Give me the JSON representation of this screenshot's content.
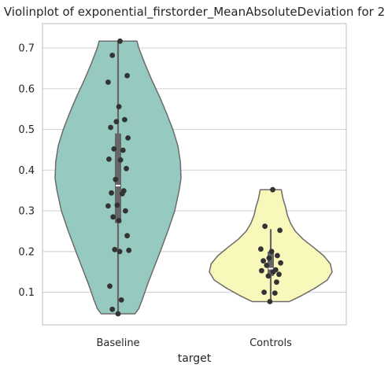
{
  "chart_data": {
    "type": "violin",
    "title": "Violinplot of exponential_firstorder_MeanAbsoluteDeviation for 2",
    "xlabel": "target",
    "ylabel": "",
    "categories": [
      "Baseline",
      "Controls"
    ],
    "ylim": [
      0.02,
      0.76
    ],
    "yticks": [
      0.1,
      0.2,
      0.3,
      0.4,
      0.5,
      0.6,
      0.7
    ],
    "ytick_labels": [
      "0.1",
      "0.2",
      "0.3",
      "0.4",
      "0.5",
      "0.6",
      "0.7"
    ],
    "grid": true,
    "colors": {
      "Baseline": "#96cac0",
      "Controls": "#f9f8bb",
      "outline": "#6b6b6b",
      "points": "#333333",
      "box": "#666666"
    },
    "series": [
      {
        "name": "Baseline",
        "min": 0.047,
        "max": 0.717,
        "q1": 0.27,
        "median": 0.362,
        "q3": 0.49,
        "whisker_low": 0.047,
        "whisker_high": 0.717,
        "density_profile": [
          [
            0.047,
            0.27
          ],
          [
            0.06,
            0.33
          ],
          [
            0.08,
            0.38
          ],
          [
            0.12,
            0.47
          ],
          [
            0.16,
            0.57
          ],
          [
            0.2,
            0.67
          ],
          [
            0.25,
            0.79
          ],
          [
            0.3,
            0.9
          ],
          [
            0.35,
            0.97
          ],
          [
            0.38,
            1.0
          ],
          [
            0.42,
            0.99
          ],
          [
            0.46,
            0.95
          ],
          [
            0.5,
            0.87
          ],
          [
            0.54,
            0.77
          ],
          [
            0.58,
            0.66
          ],
          [
            0.62,
            0.54
          ],
          [
            0.66,
            0.43
          ],
          [
            0.7,
            0.33
          ],
          [
            0.717,
            0.3
          ]
        ],
        "points": [
          0.717,
          0.682,
          0.632,
          0.616,
          0.556,
          0.524,
          0.519,
          0.505,
          0.479,
          0.452,
          0.449,
          0.427,
          0.425,
          0.404,
          0.377,
          0.349,
          0.344,
          0.342,
          0.314,
          0.312,
          0.3,
          0.285,
          0.276,
          0.239,
          0.205,
          0.203,
          0.2,
          0.115,
          0.081,
          0.058,
          0.047
        ]
      },
      {
        "name": "Controls",
        "min": 0.077,
        "max": 0.352,
        "q1": 0.14,
        "median": 0.158,
        "q3": 0.2,
        "whisker_low": 0.077,
        "whisker_high": 0.255,
        "density_profile": [
          [
            0.077,
            0.3
          ],
          [
            0.09,
            0.48
          ],
          [
            0.11,
            0.72
          ],
          [
            0.13,
            0.92
          ],
          [
            0.15,
            1.0
          ],
          [
            0.17,
            0.97
          ],
          [
            0.19,
            0.86
          ],
          [
            0.21,
            0.7
          ],
          [
            0.23,
            0.53
          ],
          [
            0.25,
            0.4
          ],
          [
            0.27,
            0.32
          ],
          [
            0.29,
            0.27
          ],
          [
            0.31,
            0.24
          ],
          [
            0.33,
            0.2
          ],
          [
            0.352,
            0.17
          ]
        ],
        "points": [
          0.352,
          0.262,
          0.252,
          0.206,
          0.2,
          0.19,
          0.184,
          0.177,
          0.172,
          0.166,
          0.155,
          0.153,
          0.15,
          0.144,
          0.14,
          0.125,
          0.1,
          0.098,
          0.077
        ]
      }
    ]
  }
}
